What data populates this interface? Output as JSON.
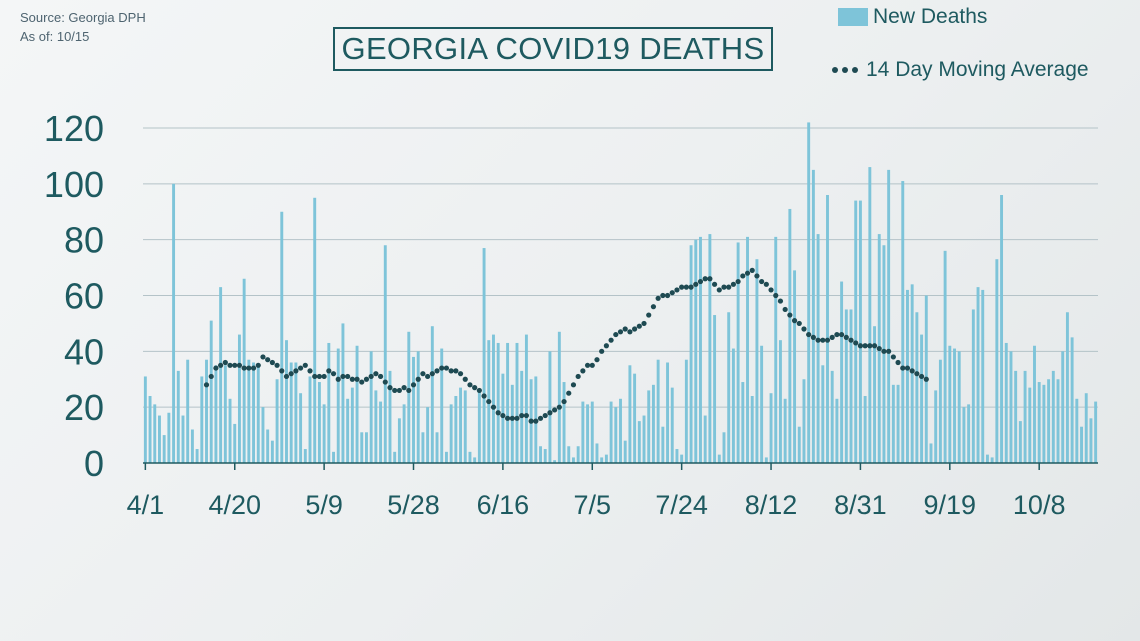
{
  "source": {
    "line1": "Source: Georgia DPH",
    "line2": "As of: 10/15"
  },
  "colors": {
    "bar": "#7ec4d9",
    "avg": "#1e4a52",
    "text": "#1e5a60",
    "grid": "#b4c3c8"
  },
  "chart_data": {
    "type": "bar",
    "title": "GEORGIA COVID19 DEATHS",
    "ylim": [
      0,
      120
    ],
    "yticks": [
      0,
      20,
      40,
      60,
      80,
      100,
      120
    ],
    "xtick_labels": [
      "4/1",
      "4/20",
      "5/9",
      "5/28",
      "6/16",
      "7/5",
      "7/24",
      "8/12",
      "8/31",
      "9/19",
      "10/8"
    ],
    "xtick_day_index": [
      0,
      19,
      38,
      57,
      76,
      95,
      114,
      133,
      152,
      171,
      190
    ],
    "grid": true,
    "legend_position": "top-right",
    "series": [
      {
        "name": "New Deaths",
        "kind": "bar",
        "start_date": "4/1",
        "values": [
          31,
          24,
          21,
          17,
          10,
          18,
          100,
          33,
          17,
          37,
          12,
          5,
          31,
          37,
          51,
          35,
          63,
          35,
          23,
          14,
          46,
          66,
          37,
          36,
          35,
          20,
          12,
          8,
          30,
          90,
          44,
          36,
          36,
          25,
          5,
          31,
          95,
          29,
          21,
          43,
          4,
          41,
          50,
          23,
          27,
          42,
          11,
          11,
          40,
          26,
          22,
          78,
          33,
          4,
          16,
          21,
          47,
          38,
          40,
          11,
          20,
          49,
          11,
          41,
          4,
          21,
          24,
          27,
          26,
          4,
          2,
          26,
          77,
          44,
          46,
          43,
          32,
          43,
          28,
          43,
          33,
          46,
          30,
          31,
          6,
          5,
          40,
          1,
          47,
          29,
          6,
          2,
          6,
          22,
          21,
          22,
          7,
          2,
          3,
          22,
          20,
          23,
          8,
          35,
          32,
          15,
          17,
          26,
          28,
          37,
          13,
          36,
          27,
          5,
          3,
          37,
          78,
          80,
          81,
          17,
          82,
          53,
          3,
          11,
          54,
          41,
          79,
          29,
          81,
          24,
          73,
          42,
          2,
          25,
          81,
          44,
          23,
          91,
          69,
          13,
          30,
          122,
          105,
          82,
          35,
          96,
          33,
          23,
          65,
          55,
          55,
          94,
          94,
          24,
          106,
          49,
          82,
          78,
          105,
          28,
          28,
          101,
          62,
          64,
          54,
          46,
          60,
          7,
          26,
          37,
          76,
          42,
          41,
          40,
          20,
          21,
          55,
          63,
          62,
          3,
          2,
          73,
          96,
          43,
          40,
          33,
          15,
          33,
          27,
          42,
          29,
          28,
          30,
          33,
          30,
          40,
          54,
          45,
          23,
          13,
          25,
          16,
          22
        ]
      },
      {
        "name": "14 Day Moving Average",
        "kind": "dotted-line",
        "start_day_index": 13,
        "values": [
          28,
          31,
          34,
          35,
          36,
          35,
          35,
          35,
          34,
          34,
          34,
          35,
          38,
          37,
          36,
          35,
          33,
          31,
          32,
          33,
          34,
          35,
          33,
          31,
          31,
          31,
          33,
          32,
          30,
          31,
          31,
          30,
          30,
          29,
          30,
          31,
          32,
          31,
          29,
          27,
          26,
          26,
          27,
          26,
          28,
          30,
          32,
          31,
          32,
          33,
          34,
          34,
          33,
          33,
          32,
          30,
          28,
          27,
          26,
          24,
          22,
          20,
          18,
          17,
          16,
          16,
          16,
          17,
          17,
          15,
          15,
          16,
          17,
          18,
          19,
          20,
          22,
          25,
          28,
          31,
          33,
          35,
          35,
          37,
          40,
          42,
          44,
          46,
          47,
          48,
          47,
          48,
          49,
          50,
          53,
          56,
          59,
          60,
          60,
          61,
          62,
          63,
          63,
          63,
          64,
          65,
          66,
          66,
          64,
          62,
          63,
          63,
          64,
          65,
          67,
          68,
          69,
          67,
          65,
          64,
          62,
          60,
          58,
          55,
          53,
          51,
          50,
          48,
          46,
          45,
          44,
          44,
          44,
          45,
          46,
          46,
          45,
          44,
          43,
          42,
          42,
          42,
          42,
          41,
          40,
          40,
          38,
          36,
          34,
          34,
          33,
          32,
          31,
          30
        ]
      }
    ]
  }
}
